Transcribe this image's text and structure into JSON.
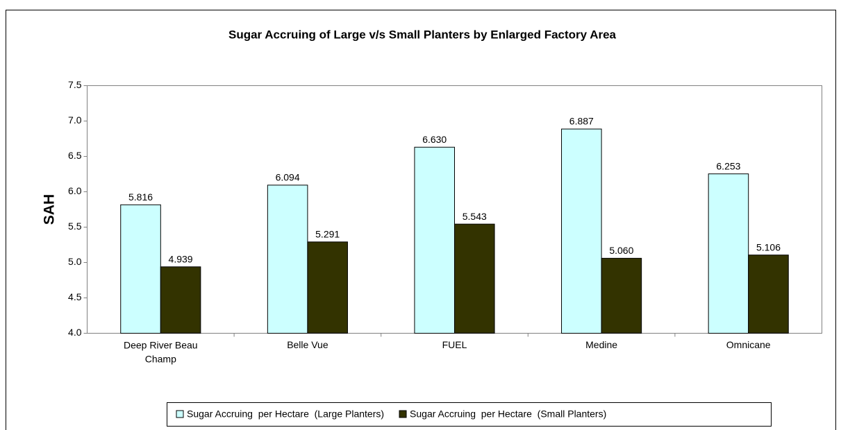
{
  "chart_data": {
    "type": "bar",
    "title": "Sugar Accruing of Large v/s Small Planters by Enlarged Factory Area",
    "ylabel": "SAH",
    "categories": [
      "Deep River Beau Champ",
      "Belle Vue",
      "FUEL",
      "Medine",
      "Omnicane"
    ],
    "series": [
      {
        "name": "Sugar Accruing  per Hectare  (Large Planters)",
        "color": "#ccffff",
        "values": [
          5.816,
          6.094,
          6.63,
          6.887,
          6.253
        ],
        "value_labels": [
          "5.816",
          "6.094",
          "6.630",
          "6.887",
          "6.253"
        ]
      },
      {
        "name": "Sugar Accruing  per Hectare  (Small Planters)",
        "color": "#333300",
        "values": [
          4.939,
          5.291,
          5.543,
          5.06,
          5.106
        ],
        "value_labels": [
          "4.939",
          "5.291",
          "5.543",
          "5.060",
          "5.106"
        ]
      }
    ],
    "ylim": [
      4,
      7.5
    ],
    "yticks": [
      {
        "value": 4,
        "label": "4.0"
      },
      {
        "value": 4.5,
        "label": "4.5"
      },
      {
        "value": 5,
        "label": "5.0"
      },
      {
        "value": 5.5,
        "label": "5.5"
      },
      {
        "value": 6,
        "label": "6.0"
      },
      {
        "value": 6.5,
        "label": "6.5"
      },
      {
        "value": 7,
        "label": "7.0"
      },
      {
        "value": 7.5,
        "label": "7.5"
      }
    ],
    "grid": false,
    "legend": "bottom"
  }
}
